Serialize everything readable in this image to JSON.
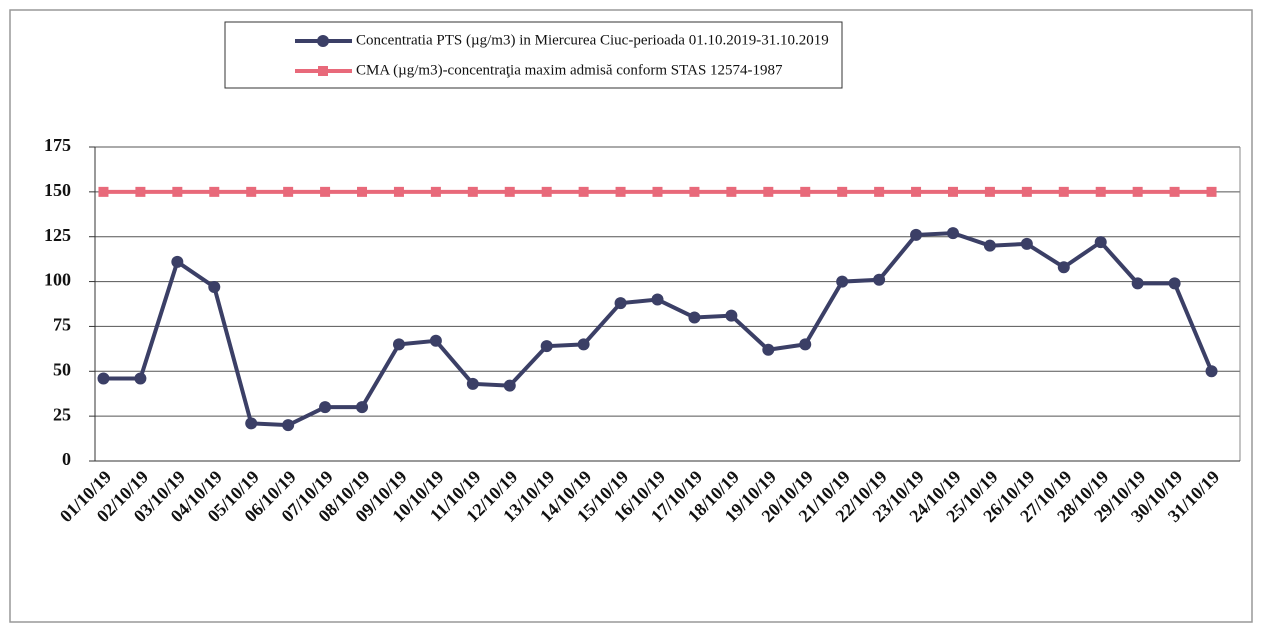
{
  "chart_data": {
    "type": "line",
    "categories": [
      "01/10/19",
      "02/10/19",
      "03/10/19",
      "04/10/19",
      "05/10/19",
      "06/10/19",
      "07/10/19",
      "08/10/19",
      "09/10/19",
      "10/10/19",
      "11/10/19",
      "12/10/19",
      "13/10/19",
      "14/10/19",
      "15/10/19",
      "16/10/19",
      "17/10/19",
      "18/10/19",
      "19/10/19",
      "20/10/19",
      "21/10/19",
      "22/10/19",
      "23/10/19",
      "24/10/19",
      "25/10/19",
      "26/10/19",
      "27/10/19",
      "28/10/19",
      "29/10/19",
      "30/10/19",
      "31/10/19"
    ],
    "series": [
      {
        "name": "Concentratia PTS (µg/m3) in Miercurea Ciuc-perioada 01.10.2019-31.10.2019",
        "color": "#3b3f66",
        "marker": "circle",
        "values": [
          46,
          46,
          111,
          97,
          21,
          20,
          30,
          30,
          65,
          67,
          43,
          42,
          64,
          65,
          88,
          90,
          80,
          81,
          62,
          65,
          100,
          101,
          126,
          127,
          120,
          121,
          108,
          122,
          99,
          99,
          50
        ]
      },
      {
        "name": "CMA (µg/m3)-concentraţia maxim admisă conform STAS 12574-1987",
        "color": "#e8697a",
        "marker": "square",
        "values": [
          150,
          150,
          150,
          150,
          150,
          150,
          150,
          150,
          150,
          150,
          150,
          150,
          150,
          150,
          150,
          150,
          150,
          150,
          150,
          150,
          150,
          150,
          150,
          150,
          150,
          150,
          150,
          150,
          150,
          150,
          150
        ]
      }
    ],
    "ylim": [
      0,
      175
    ],
    "yticks": [
      0,
      25,
      50,
      75,
      100,
      125,
      150,
      175
    ],
    "grid": true
  }
}
